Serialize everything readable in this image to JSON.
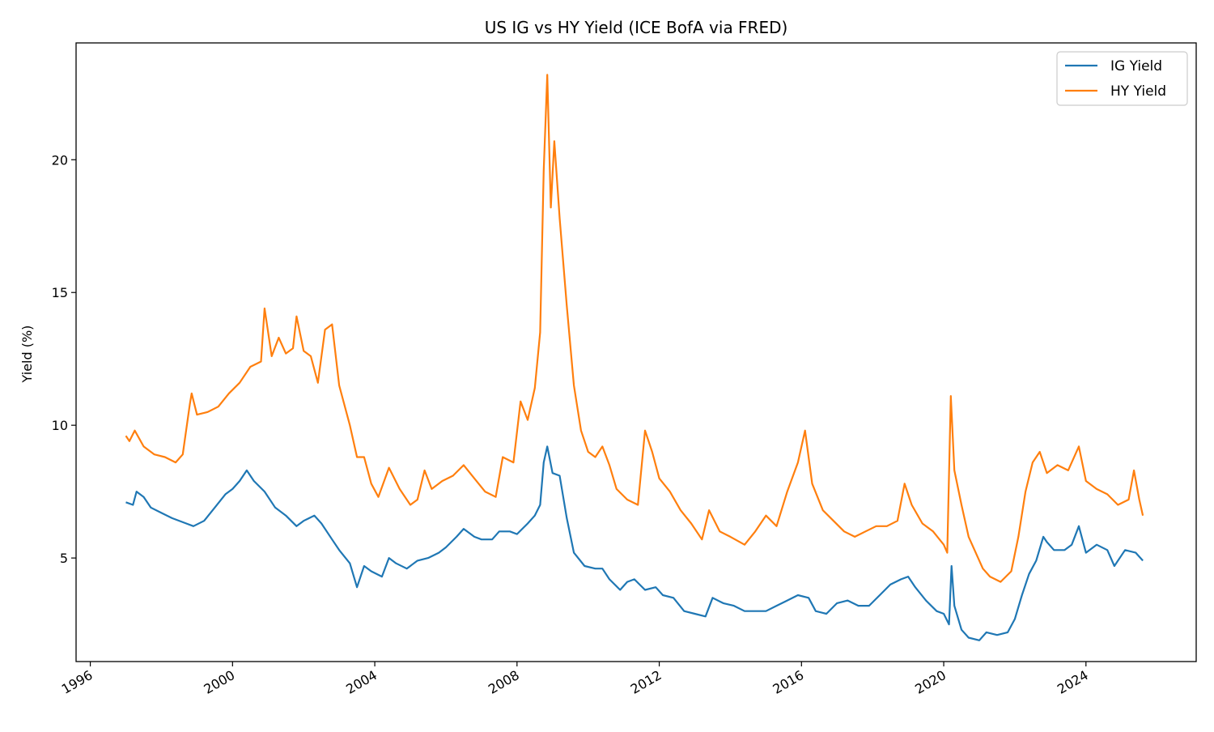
{
  "chart_data": {
    "type": "line",
    "title": "US IG vs HY Yield (ICE BofA via FRED)",
    "xlabel": "",
    "ylabel": "Yield (%)",
    "xlim": [
      1995.6,
      2027.1
    ],
    "ylim": [
      1.1,
      24.4
    ],
    "x_ticks": [
      {
        "value": 1996,
        "label": "1996"
      },
      {
        "value": 2000,
        "label": "2000"
      },
      {
        "value": 2004,
        "label": "2004"
      },
      {
        "value": 2008,
        "label": "2008"
      },
      {
        "value": 2012,
        "label": "2012"
      },
      {
        "value": 2016,
        "label": "2016"
      },
      {
        "value": 2020,
        "label": "2020"
      },
      {
        "value": 2024,
        "label": "2024"
      }
    ],
    "y_ticks": [
      {
        "value": 5,
        "label": "5"
      },
      {
        "value": 10,
        "label": "10"
      },
      {
        "value": 15,
        "label": "15"
      },
      {
        "value": 20,
        "label": "20"
      }
    ],
    "grid": false,
    "legend_position": "top-right",
    "series": [
      {
        "name": "IG Yield",
        "color": "#1f77b4",
        "points": [
          [
            1997.0,
            7.1
          ],
          [
            1997.2,
            7.0
          ],
          [
            1997.3,
            7.5
          ],
          [
            1997.5,
            7.3
          ],
          [
            1997.7,
            6.9
          ],
          [
            1998.0,
            6.7
          ],
          [
            1998.3,
            6.5
          ],
          [
            1998.7,
            6.3
          ],
          [
            1998.9,
            6.2
          ],
          [
            1999.2,
            6.4
          ],
          [
            1999.5,
            6.9
          ],
          [
            1999.8,
            7.4
          ],
          [
            2000.0,
            7.6
          ],
          [
            2000.2,
            7.9
          ],
          [
            2000.4,
            8.3
          ],
          [
            2000.6,
            7.9
          ],
          [
            2000.9,
            7.5
          ],
          [
            2001.2,
            6.9
          ],
          [
            2001.5,
            6.6
          ],
          [
            2001.8,
            6.2
          ],
          [
            2002.0,
            6.4
          ],
          [
            2002.3,
            6.6
          ],
          [
            2002.5,
            6.3
          ],
          [
            2002.8,
            5.7
          ],
          [
            2003.0,
            5.3
          ],
          [
            2003.3,
            4.8
          ],
          [
            2003.5,
            3.9
          ],
          [
            2003.7,
            4.7
          ],
          [
            2003.9,
            4.5
          ],
          [
            2004.2,
            4.3
          ],
          [
            2004.4,
            5.0
          ],
          [
            2004.6,
            4.8
          ],
          [
            2004.9,
            4.6
          ],
          [
            2005.2,
            4.9
          ],
          [
            2005.5,
            5.0
          ],
          [
            2005.8,
            5.2
          ],
          [
            2006.0,
            5.4
          ],
          [
            2006.3,
            5.8
          ],
          [
            2006.5,
            6.1
          ],
          [
            2006.8,
            5.8
          ],
          [
            2007.0,
            5.7
          ],
          [
            2007.3,
            5.7
          ],
          [
            2007.5,
            6.0
          ],
          [
            2007.8,
            6.0
          ],
          [
            2008.0,
            5.9
          ],
          [
            2008.3,
            6.3
          ],
          [
            2008.5,
            6.6
          ],
          [
            2008.65,
            7.0
          ],
          [
            2008.75,
            8.6
          ],
          [
            2008.85,
            9.2
          ],
          [
            2009.0,
            8.2
          ],
          [
            2009.2,
            8.1
          ],
          [
            2009.4,
            6.5
          ],
          [
            2009.6,
            5.2
          ],
          [
            2009.9,
            4.7
          ],
          [
            2010.2,
            4.6
          ],
          [
            2010.4,
            4.6
          ],
          [
            2010.6,
            4.2
          ],
          [
            2010.9,
            3.8
          ],
          [
            2011.1,
            4.1
          ],
          [
            2011.3,
            4.2
          ],
          [
            2011.6,
            3.8
          ],
          [
            2011.9,
            3.9
          ],
          [
            2012.1,
            3.6
          ],
          [
            2012.4,
            3.5
          ],
          [
            2012.7,
            3.0
          ],
          [
            2013.0,
            2.9
          ],
          [
            2013.3,
            2.8
          ],
          [
            2013.5,
            3.5
          ],
          [
            2013.8,
            3.3
          ],
          [
            2014.1,
            3.2
          ],
          [
            2014.4,
            3.0
          ],
          [
            2014.7,
            3.0
          ],
          [
            2015.0,
            3.0
          ],
          [
            2015.3,
            3.2
          ],
          [
            2015.6,
            3.4
          ],
          [
            2015.9,
            3.6
          ],
          [
            2016.2,
            3.5
          ],
          [
            2016.4,
            3.0
          ],
          [
            2016.7,
            2.9
          ],
          [
            2017.0,
            3.3
          ],
          [
            2017.3,
            3.4
          ],
          [
            2017.6,
            3.2
          ],
          [
            2017.9,
            3.2
          ],
          [
            2018.2,
            3.6
          ],
          [
            2018.5,
            4.0
          ],
          [
            2018.8,
            4.2
          ],
          [
            2019.0,
            4.3
          ],
          [
            2019.2,
            3.9
          ],
          [
            2019.5,
            3.4
          ],
          [
            2019.8,
            3.0
          ],
          [
            2020.0,
            2.9
          ],
          [
            2020.15,
            2.5
          ],
          [
            2020.22,
            4.7
          ],
          [
            2020.3,
            3.2
          ],
          [
            2020.5,
            2.3
          ],
          [
            2020.7,
            2.0
          ],
          [
            2021.0,
            1.9
          ],
          [
            2021.2,
            2.2
          ],
          [
            2021.5,
            2.1
          ],
          [
            2021.8,
            2.2
          ],
          [
            2022.0,
            2.7
          ],
          [
            2022.2,
            3.6
          ],
          [
            2022.4,
            4.4
          ],
          [
            2022.6,
            4.9
          ],
          [
            2022.8,
            5.8
          ],
          [
            2022.9,
            5.6
          ],
          [
            2023.1,
            5.3
          ],
          [
            2023.4,
            5.3
          ],
          [
            2023.6,
            5.5
          ],
          [
            2023.8,
            6.2
          ],
          [
            2024.0,
            5.2
          ],
          [
            2024.3,
            5.5
          ],
          [
            2024.6,
            5.3
          ],
          [
            2024.8,
            4.7
          ],
          [
            2025.1,
            5.3
          ],
          [
            2025.4,
            5.2
          ],
          [
            2025.6,
            4.9
          ]
        ]
      },
      {
        "name": "HY Yield",
        "color": "#ff7f0e",
        "points": [
          [
            1997.0,
            9.6
          ],
          [
            1997.1,
            9.4
          ],
          [
            1997.25,
            9.8
          ],
          [
            1997.5,
            9.2
          ],
          [
            1997.8,
            8.9
          ],
          [
            1998.1,
            8.8
          ],
          [
            1998.4,
            8.6
          ],
          [
            1998.6,
            8.9
          ],
          [
            1998.8,
            10.8
          ],
          [
            1998.85,
            11.2
          ],
          [
            1999.0,
            10.4
          ],
          [
            1999.3,
            10.5
          ],
          [
            1999.6,
            10.7
          ],
          [
            1999.9,
            11.2
          ],
          [
            2000.2,
            11.6
          ],
          [
            2000.5,
            12.2
          ],
          [
            2000.8,
            12.4
          ],
          [
            2000.9,
            14.4
          ],
          [
            2001.1,
            12.6
          ],
          [
            2001.3,
            13.3
          ],
          [
            2001.5,
            12.7
          ],
          [
            2001.7,
            12.9
          ],
          [
            2001.8,
            14.1
          ],
          [
            2002.0,
            12.8
          ],
          [
            2002.2,
            12.6
          ],
          [
            2002.4,
            11.6
          ],
          [
            2002.6,
            13.6
          ],
          [
            2002.8,
            13.8
          ],
          [
            2003.0,
            11.5
          ],
          [
            2003.3,
            10.0
          ],
          [
            2003.5,
            8.8
          ],
          [
            2003.7,
            8.8
          ],
          [
            2003.9,
            7.8
          ],
          [
            2004.1,
            7.3
          ],
          [
            2004.4,
            8.4
          ],
          [
            2004.7,
            7.6
          ],
          [
            2005.0,
            7.0
          ],
          [
            2005.2,
            7.2
          ],
          [
            2005.4,
            8.3
          ],
          [
            2005.6,
            7.6
          ],
          [
            2005.9,
            7.9
          ],
          [
            2006.2,
            8.1
          ],
          [
            2006.5,
            8.5
          ],
          [
            2006.8,
            8.0
          ],
          [
            2007.1,
            7.5
          ],
          [
            2007.4,
            7.3
          ],
          [
            2007.6,
            8.8
          ],
          [
            2007.9,
            8.6
          ],
          [
            2008.1,
            10.9
          ],
          [
            2008.3,
            10.2
          ],
          [
            2008.5,
            11.4
          ],
          [
            2008.65,
            13.5
          ],
          [
            2008.75,
            19.6
          ],
          [
            2008.85,
            23.2
          ],
          [
            2008.95,
            18.2
          ],
          [
            2009.05,
            20.7
          ],
          [
            2009.2,
            17.8
          ],
          [
            2009.4,
            14.5
          ],
          [
            2009.6,
            11.5
          ],
          [
            2009.8,
            9.8
          ],
          [
            2010.0,
            9.0
          ],
          [
            2010.2,
            8.8
          ],
          [
            2010.4,
            9.2
          ],
          [
            2010.6,
            8.5
          ],
          [
            2010.8,
            7.6
          ],
          [
            2011.1,
            7.2
          ],
          [
            2011.4,
            7.0
          ],
          [
            2011.6,
            9.8
          ],
          [
            2011.8,
            9.0
          ],
          [
            2012.0,
            8.0
          ],
          [
            2012.3,
            7.5
          ],
          [
            2012.6,
            6.8
          ],
          [
            2012.9,
            6.3
          ],
          [
            2013.2,
            5.7
          ],
          [
            2013.4,
            6.8
          ],
          [
            2013.7,
            6.0
          ],
          [
            2014.0,
            5.8
          ],
          [
            2014.4,
            5.5
          ],
          [
            2014.7,
            6.0
          ],
          [
            2015.0,
            6.6
          ],
          [
            2015.3,
            6.2
          ],
          [
            2015.6,
            7.5
          ],
          [
            2015.9,
            8.6
          ],
          [
            2016.1,
            9.8
          ],
          [
            2016.3,
            7.8
          ],
          [
            2016.6,
            6.8
          ],
          [
            2016.9,
            6.4
          ],
          [
            2017.2,
            6.0
          ],
          [
            2017.5,
            5.8
          ],
          [
            2017.8,
            6.0
          ],
          [
            2018.1,
            6.2
          ],
          [
            2018.4,
            6.2
          ],
          [
            2018.7,
            6.4
          ],
          [
            2018.9,
            7.8
          ],
          [
            2019.1,
            7.0
          ],
          [
            2019.4,
            6.3
          ],
          [
            2019.7,
            6.0
          ],
          [
            2020.0,
            5.5
          ],
          [
            2020.1,
            5.2
          ],
          [
            2020.2,
            11.1
          ],
          [
            2020.3,
            8.3
          ],
          [
            2020.5,
            7.0
          ],
          [
            2020.7,
            5.8
          ],
          [
            2020.9,
            5.2
          ],
          [
            2021.1,
            4.6
          ],
          [
            2021.3,
            4.3
          ],
          [
            2021.6,
            4.1
          ],
          [
            2021.9,
            4.5
          ],
          [
            2022.1,
            5.8
          ],
          [
            2022.3,
            7.5
          ],
          [
            2022.5,
            8.6
          ],
          [
            2022.7,
            9.0
          ],
          [
            2022.9,
            8.2
          ],
          [
            2023.2,
            8.5
          ],
          [
            2023.5,
            8.3
          ],
          [
            2023.8,
            9.2
          ],
          [
            2024.0,
            7.9
          ],
          [
            2024.3,
            7.6
          ],
          [
            2024.6,
            7.4
          ],
          [
            2024.9,
            7.0
          ],
          [
            2025.2,
            7.2
          ],
          [
            2025.35,
            8.3
          ],
          [
            2025.5,
            7.2
          ],
          [
            2025.6,
            6.6
          ]
        ]
      }
    ]
  }
}
